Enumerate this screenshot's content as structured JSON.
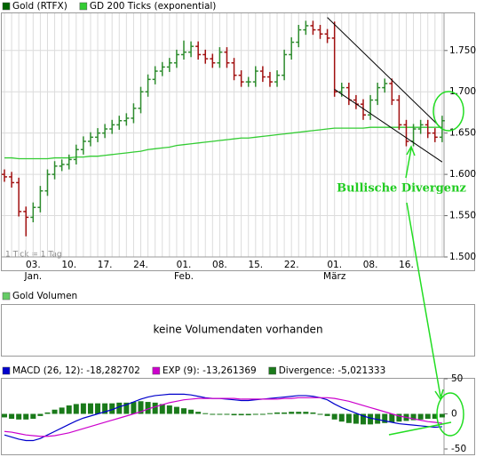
{
  "chart_data": [
    {
      "type": "ohlc",
      "categories": [
        null,
        null,
        null,
        null,
        "03.",
        null,
        null,
        null,
        null,
        "10.",
        null,
        null,
        null,
        null,
        "17.",
        null,
        null,
        null,
        null,
        "24.",
        null,
        null,
        null,
        null,
        null,
        "01.",
        null,
        null,
        null,
        null,
        "08.",
        null,
        null,
        null,
        null,
        "15.",
        null,
        null,
        null,
        null,
        "22.",
        null,
        null,
        null,
        null,
        null,
        "01.",
        null,
        null,
        null,
        null,
        "08.",
        null,
        null,
        null,
        null,
        "16.",
        null,
        null,
        null,
        null,
        null
      ],
      "months": [
        null,
        null,
        null,
        null,
        "Jan.",
        null,
        null,
        null,
        null,
        null,
        null,
        null,
        null,
        null,
        null,
        null,
        null,
        null,
        null,
        null,
        null,
        null,
        null,
        null,
        null,
        "Feb.",
        null,
        null,
        null,
        null,
        null,
        null,
        null,
        null,
        null,
        null,
        null,
        null,
        null,
        null,
        null,
        null,
        null,
        null,
        null,
        null,
        "März",
        null,
        null,
        null,
        null,
        null,
        null,
        null,
        null,
        null,
        null,
        null,
        null,
        null,
        null,
        null
      ],
      "series": [
        {
          "name": "Gold (RTFX)",
          "color": "#006400",
          "up_color": "#2e8b2e",
          "down_color": "#a01010",
          "open": [
            1600,
            1597,
            1590,
            1555,
            1548,
            1560,
            1580,
            1600,
            1610,
            1612,
            1618,
            1630,
            1640,
            1645,
            1650,
            1655,
            1660,
            1665,
            1668,
            1680,
            1700,
            1715,
            1725,
            1730,
            1735,
            1745,
            1748,
            1755,
            1745,
            1740,
            1735,
            1748,
            1735,
            1720,
            1712,
            1712,
            1725,
            1718,
            1712,
            1720,
            1745,
            1760,
            1775,
            1780,
            1775,
            1770,
            1765,
            1700,
            1705,
            1690,
            1685,
            1672,
            1690,
            1705,
            1710,
            1690,
            1660,
            1640,
            1655,
            1660,
            1650,
            1645
          ],
          "high": [
            1606,
            1603,
            1596,
            1561,
            1566,
            1586,
            1606,
            1616,
            1618,
            1624,
            1636,
            1646,
            1651,
            1656,
            1661,
            1666,
            1671,
            1674,
            1686,
            1706,
            1721,
            1731,
            1736,
            1741,
            1751,
            1762,
            1761,
            1761,
            1751,
            1746,
            1754,
            1754,
            1741,
            1726,
            1718,
            1731,
            1731,
            1724,
            1726,
            1751,
            1766,
            1781,
            1786,
            1786,
            1781,
            1776,
            1785,
            1711,
            1711,
            1696,
            1691,
            1696,
            1711,
            1716,
            1716,
            1696,
            1666,
            1661,
            1666,
            1666,
            1656,
            1671
          ],
          "low": [
            1591,
            1584,
            1549,
            1525,
            1542,
            1554,
            1574,
            1594,
            1604,
            1606,
            1612,
            1624,
            1634,
            1639,
            1644,
            1649,
            1654,
            1659,
            1662,
            1674,
            1694,
            1709,
            1719,
            1724,
            1729,
            1739,
            1742,
            1739,
            1734,
            1729,
            1729,
            1729,
            1714,
            1706,
            1706,
            1706,
            1712,
            1706,
            1706,
            1714,
            1739,
            1754,
            1769,
            1769,
            1764,
            1759,
            1694,
            1694,
            1684,
            1679,
            1666,
            1666,
            1684,
            1699,
            1684,
            1654,
            1634,
            1634,
            1649,
            1644,
            1639,
            1639
          ],
          "close": [
            1597,
            1590,
            1555,
            1548,
            1560,
            1580,
            1600,
            1610,
            1612,
            1618,
            1630,
            1640,
            1645,
            1650,
            1655,
            1660,
            1665,
            1668,
            1680,
            1700,
            1715,
            1725,
            1730,
            1735,
            1745,
            1748,
            1755,
            1745,
            1740,
            1735,
            1748,
            1735,
            1720,
            1712,
            1712,
            1725,
            1718,
            1712,
            1720,
            1745,
            1760,
            1775,
            1780,
            1775,
            1770,
            1765,
            1700,
            1705,
            1690,
            1685,
            1672,
            1690,
            1705,
            1710,
            1690,
            1660,
            1640,
            1655,
            1660,
            1650,
            1645,
            1665
          ]
        },
        {
          "name": "GD 200 Ticks (exponential)",
          "color": "#33cc33",
          "values": [
            1620,
            1620,
            1619,
            1619,
            1619,
            1619,
            1619,
            1620,
            1620,
            1620,
            1621,
            1621,
            1622,
            1622,
            1623,
            1624,
            1625,
            1626,
            1627,
            1628,
            1630,
            1631,
            1632,
            1633,
            1635,
            1636,
            1637,
            1638,
            1639,
            1640,
            1641,
            1642,
            1643,
            1644,
            1644,
            1645,
            1646,
            1647,
            1648,
            1649,
            1650,
            1651,
            1652,
            1653,
            1654,
            1655,
            1656,
            1656,
            1656,
            1656,
            1656,
            1657,
            1657,
            1657,
            1657,
            1657,
            1657,
            1657,
            1657,
            1657,
            1657,
            1657
          ]
        }
      ],
      "trendlines": [
        {
          "x": [
            45,
            61
          ],
          "y": [
            1790,
            1655
          ]
        },
        {
          "x": [
            46,
            61
          ],
          "y": [
            1703,
            1615
          ]
        }
      ],
      "ylim": [
        1500,
        1795
      ],
      "yticks": [
        {
          "value": 1500,
          "label": "1.500"
        },
        {
          "value": 1550,
          "label": "1.550"
        },
        {
          "value": 1600,
          "label": "1.600"
        },
        {
          "value": 1650,
          "label": "1.650"
        },
        {
          "value": 1700,
          "label": "1.700"
        },
        {
          "value": 1750,
          "label": "1.750"
        }
      ],
      "grid": true,
      "note": "1 Tick = 1 Tag",
      "annotation": "Bullische Divergenz"
    },
    {
      "type": "text",
      "title": "Gold Volumen",
      "color": "#66cc66",
      "message": "keine Volumendaten vorhanden"
    },
    {
      "type": "macd",
      "series": [
        {
          "name": "MACD (26, 12): -18,282702",
          "color": "#0000cc",
          "values": [
            -30,
            -33,
            -36,
            -38,
            -38,
            -35,
            -30,
            -25,
            -20,
            -15,
            -10,
            -6,
            -3,
            0,
            3,
            6,
            10,
            13,
            17,
            21,
            24,
            26,
            27,
            28,
            28,
            28,
            27,
            25,
            23,
            22,
            22,
            21,
            20,
            19,
            19,
            20,
            21,
            22,
            23,
            24,
            25,
            26,
            26,
            25,
            23,
            20,
            14,
            9,
            5,
            1,
            -3,
            -6,
            -8,
            -10,
            -12,
            -14,
            -15,
            -16,
            -17,
            -18,
            -19,
            -18.28
          ]
        },
        {
          "name": "EXP (9): -13,261369",
          "color": "#cc00cc",
          "values": [
            -25,
            -26,
            -28,
            -30,
            -31,
            -32,
            -32,
            -31,
            -29,
            -27,
            -24,
            -21,
            -18,
            -15,
            -12,
            -9,
            -6,
            -3,
            0,
            3,
            7,
            10,
            13,
            16,
            18,
            20,
            21,
            22,
            22,
            22,
            22,
            22,
            22,
            21,
            21,
            21,
            21,
            21,
            21,
            22,
            22,
            23,
            23,
            23,
            23,
            23,
            22,
            20,
            18,
            15,
            12,
            9,
            6,
            3,
            0,
            -3,
            -5,
            -7,
            -9,
            -11,
            -12,
            -13.26
          ]
        },
        {
          "name": "Divergence: -5,021333",
          "color": "#1a7a1a",
          "kind": "bar",
          "values": [
            -5,
            -7,
            -8,
            -8,
            -7,
            -3,
            2,
            6,
            9,
            12,
            14,
            15,
            15,
            15,
            15,
            15,
            16,
            16,
            17,
            18,
            17,
            16,
            14,
            12,
            10,
            8,
            6,
            3,
            1,
            0,
            0,
            -1,
            -2,
            -2,
            -2,
            -1,
            0,
            1,
            2,
            2,
            3,
            3,
            3,
            2,
            0,
            -3,
            -8,
            -11,
            -13,
            -14,
            -15,
            -15,
            -14,
            -13,
            -12,
            -11,
            -10,
            -9,
            -8,
            -7,
            -7,
            -5.02
          ]
        }
      ],
      "ylim": [
        -50,
        50
      ],
      "yticks": [
        50,
        0,
        -50
      ]
    }
  ]
}
